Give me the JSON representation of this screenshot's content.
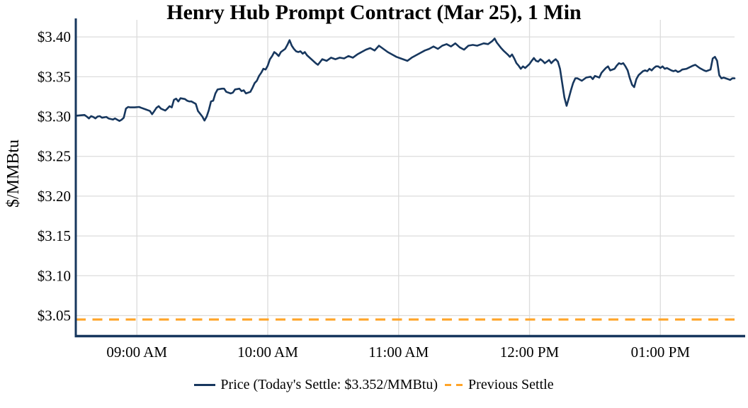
{
  "title": "Henry Hub Prompt Contract (Mar 25), 1 Min",
  "colors": {
    "price_line": "#17375E",
    "previous_settle_line": "#FFA428",
    "axis": "#17375E",
    "grid": "#DCDCDC",
    "text": "#000000",
    "background": "#FFFFFF"
  },
  "legend": {
    "price_label": "Price (Today's Settle: $3.352/MMBtu)",
    "previous_settle_label": "Previous Settle"
  },
  "chart_data": {
    "type": "line",
    "title": "Henry Hub Prompt Contract (Mar 25), 1 Min",
    "xlabel": "",
    "ylabel": "$/MMBtu",
    "grid": true,
    "legend_position": "bottom-center",
    "todays_settle": 3.352,
    "previous_settle": 3.045,
    "x_range_minutes": [
      512,
      814
    ],
    "y_range": [
      3.0255,
      3.4215
    ],
    "x_ticks": [
      {
        "t": 540,
        "label": "09:00 AM"
      },
      {
        "t": 600,
        "label": "10:00 AM"
      },
      {
        "t": 660,
        "label": "11:00 AM"
      },
      {
        "t": 720,
        "label": "12:00 PM"
      },
      {
        "t": 780,
        "label": "01:00 PM"
      }
    ],
    "y_ticks": [
      {
        "v": 3.4,
        "label": "$3.40"
      },
      {
        "v": 3.35,
        "label": "$3.35"
      },
      {
        "v": 3.3,
        "label": "$3.30"
      },
      {
        "v": 3.25,
        "label": "$3.25"
      },
      {
        "v": 3.2,
        "label": "$3.20"
      },
      {
        "v": 3.15,
        "label": "$3.15"
      },
      {
        "v": 3.1,
        "label": "$3.10"
      },
      {
        "v": 3.05,
        "label": "$3.05"
      }
    ],
    "series": [
      {
        "name": "Price",
        "points_format": [
          "minutes_after_midnight",
          "usd_per_mmbtu"
        ],
        "points": [
          [
            512,
            3.301
          ],
          [
            514,
            3.3015
          ],
          [
            516,
            3.302
          ],
          [
            517,
            3.3
          ],
          [
            518,
            3.2976
          ],
          [
            519,
            3.3005
          ],
          [
            520,
            3.2995
          ],
          [
            521,
            3.2976
          ],
          [
            522,
            3.3
          ],
          [
            523,
            3.3005
          ],
          [
            524,
            3.2985
          ],
          [
            526,
            3.2995
          ],
          [
            527,
            3.2976
          ],
          [
            529,
            3.2962
          ],
          [
            530,
            3.2976
          ],
          [
            532,
            3.2944
          ],
          [
            533,
            3.296
          ],
          [
            534,
            3.2985
          ],
          [
            535,
            3.31
          ],
          [
            536,
            3.312
          ],
          [
            537,
            3.3115
          ],
          [
            539,
            3.3115
          ],
          [
            541,
            3.312
          ],
          [
            542,
            3.311
          ],
          [
            544,
            3.309
          ],
          [
            546,
            3.307
          ],
          [
            547,
            3.303
          ],
          [
            548,
            3.307
          ],
          [
            549,
            3.311
          ],
          [
            550,
            3.313
          ],
          [
            551,
            3.31
          ],
          [
            553,
            3.3075
          ],
          [
            554,
            3.31
          ],
          [
            555,
            3.313
          ],
          [
            556,
            3.3115
          ],
          [
            557,
            3.321
          ],
          [
            558,
            3.3225
          ],
          [
            559,
            3.319
          ],
          [
            560,
            3.323
          ],
          [
            562,
            3.322
          ],
          [
            563,
            3.32
          ],
          [
            564,
            3.319
          ],
          [
            565,
            3.319
          ],
          [
            567,
            3.316
          ],
          [
            568,
            3.307
          ],
          [
            570,
            3.3
          ],
          [
            571,
            3.295
          ],
          [
            572,
            3.3
          ],
          [
            573,
            3.308
          ],
          [
            574,
            3.319
          ],
          [
            575,
            3.32
          ],
          [
            576,
            3.329
          ],
          [
            577,
            3.334
          ],
          [
            579,
            3.335
          ],
          [
            580,
            3.335
          ],
          [
            581,
            3.331
          ],
          [
            583,
            3.329
          ],
          [
            584,
            3.33
          ],
          [
            585,
            3.334
          ],
          [
            587,
            3.335
          ],
          [
            588,
            3.332
          ],
          [
            589,
            3.333
          ],
          [
            590,
            3.329
          ],
          [
            592,
            3.331
          ],
          [
            593,
            3.336
          ],
          [
            594,
            3.342
          ],
          [
            595,
            3.345
          ],
          [
            596,
            3.351
          ],
          [
            597,
            3.355
          ],
          [
            598,
            3.36
          ],
          [
            599,
            3.359
          ],
          [
            600,
            3.364
          ],
          [
            601,
            3.372
          ],
          [
            602,
            3.376
          ],
          [
            603,
            3.381
          ],
          [
            604,
            3.379
          ],
          [
            605,
            3.376
          ],
          [
            606,
            3.381
          ],
          [
            608,
            3.385
          ],
          [
            609,
            3.39
          ],
          [
            610,
            3.396
          ],
          [
            611,
            3.389
          ],
          [
            612,
            3.385
          ],
          [
            613,
            3.382
          ],
          [
            614,
            3.381
          ],
          [
            615,
            3.382
          ],
          [
            616,
            3.379
          ],
          [
            617,
            3.381
          ],
          [
            618,
            3.377
          ],
          [
            620,
            3.372
          ],
          [
            622,
            3.367
          ],
          [
            623,
            3.365
          ],
          [
            625,
            3.372
          ],
          [
            627,
            3.37
          ],
          [
            629,
            3.374
          ],
          [
            631,
            3.372
          ],
          [
            633,
            3.374
          ],
          [
            635,
            3.373
          ],
          [
            637,
            3.376
          ],
          [
            639,
            3.374
          ],
          [
            641,
            3.378
          ],
          [
            643,
            3.381
          ],
          [
            645,
            3.384
          ],
          [
            647,
            3.386
          ],
          [
            649,
            3.383
          ],
          [
            651,
            3.389
          ],
          [
            653,
            3.385
          ],
          [
            655,
            3.381
          ],
          [
            657,
            3.378
          ],
          [
            659,
            3.375
          ],
          [
            661,
            3.373
          ],
          [
            664,
            3.37
          ],
          [
            666,
            3.374
          ],
          [
            668,
            3.377
          ],
          [
            670,
            3.38
          ],
          [
            672,
            3.383
          ],
          [
            674,
            3.385
          ],
          [
            676,
            3.388
          ],
          [
            678,
            3.385
          ],
          [
            680,
            3.389
          ],
          [
            682,
            3.391
          ],
          [
            684,
            3.388
          ],
          [
            686,
            3.392
          ],
          [
            688,
            3.387
          ],
          [
            690,
            3.384
          ],
          [
            692,
            3.389
          ],
          [
            694,
            3.39
          ],
          [
            696,
            3.389
          ],
          [
            698,
            3.391
          ],
          [
            699,
            3.392
          ],
          [
            701,
            3.391
          ],
          [
            703,
            3.395
          ],
          [
            704,
            3.398
          ],
          [
            705,
            3.393
          ],
          [
            707,
            3.386
          ],
          [
            708,
            3.383
          ],
          [
            710,
            3.378
          ],
          [
            711,
            3.375
          ],
          [
            712,
            3.378
          ],
          [
            713,
            3.373
          ],
          [
            714,
            3.367
          ],
          [
            715,
            3.364
          ],
          [
            716,
            3.36
          ],
          [
            717,
            3.363
          ],
          [
            718,
            3.361
          ],
          [
            720,
            3.366
          ],
          [
            721,
            3.37
          ],
          [
            722,
            3.3735
          ],
          [
            723,
            3.37
          ],
          [
            724,
            3.369
          ],
          [
            725,
            3.372
          ],
          [
            726,
            3.37
          ],
          [
            727,
            3.367
          ],
          [
            728,
            3.369
          ],
          [
            729,
            3.371
          ],
          [
            730,
            3.367
          ],
          [
            731,
            3.37
          ],
          [
            732,
            3.372
          ],
          [
            733,
            3.369
          ],
          [
            734,
            3.36
          ],
          [
            735,
            3.342
          ],
          [
            736,
            3.324
          ],
          [
            737,
            3.3135
          ],
          [
            738,
            3.323
          ],
          [
            739,
            3.333
          ],
          [
            740,
            3.342
          ],
          [
            741,
            3.348
          ],
          [
            742,
            3.348
          ],
          [
            744,
            3.345
          ],
          [
            746,
            3.349
          ],
          [
            748,
            3.35
          ],
          [
            749,
            3.347
          ],
          [
            750,
            3.351
          ],
          [
            752,
            3.349
          ],
          [
            753,
            3.355
          ],
          [
            754,
            3.358
          ],
          [
            755,
            3.361
          ],
          [
            756,
            3.363
          ],
          [
            757,
            3.358
          ],
          [
            759,
            3.36
          ],
          [
            760,
            3.364
          ],
          [
            761,
            3.367
          ],
          [
            762,
            3.366
          ],
          [
            763,
            3.367
          ],
          [
            764,
            3.363
          ],
          [
            765,
            3.358
          ],
          [
            766,
            3.348
          ],
          [
            767,
            3.34
          ],
          [
            768,
            3.337
          ],
          [
            769,
            3.347
          ],
          [
            770,
            3.352
          ],
          [
            772,
            3.357
          ],
          [
            773,
            3.358
          ],
          [
            774,
            3.357
          ],
          [
            775,
            3.36
          ],
          [
            776,
            3.358
          ],
          [
            777,
            3.361
          ],
          [
            778,
            3.363
          ],
          [
            779,
            3.363
          ],
          [
            780,
            3.361
          ],
          [
            781,
            3.363
          ],
          [
            782,
            3.36
          ],
          [
            783,
            3.361
          ],
          [
            785,
            3.358
          ],
          [
            786,
            3.357
          ],
          [
            787,
            3.358
          ],
          [
            788,
            3.356
          ],
          [
            789,
            3.357
          ],
          [
            790,
            3.359
          ],
          [
            792,
            3.36
          ],
          [
            795,
            3.364
          ],
          [
            796,
            3.365
          ],
          [
            798,
            3.361
          ],
          [
            800,
            3.358
          ],
          [
            801,
            3.357
          ],
          [
            803,
            3.359
          ],
          [
            804,
            3.373
          ],
          [
            805,
            3.375
          ],
          [
            806,
            3.37
          ],
          [
            807,
            3.352
          ],
          [
            808,
            3.348
          ],
          [
            809,
            3.349
          ],
          [
            810,
            3.348
          ],
          [
            812,
            3.346
          ],
          [
            813,
            3.348
          ],
          [
            814,
            3.348
          ]
        ]
      }
    ]
  }
}
